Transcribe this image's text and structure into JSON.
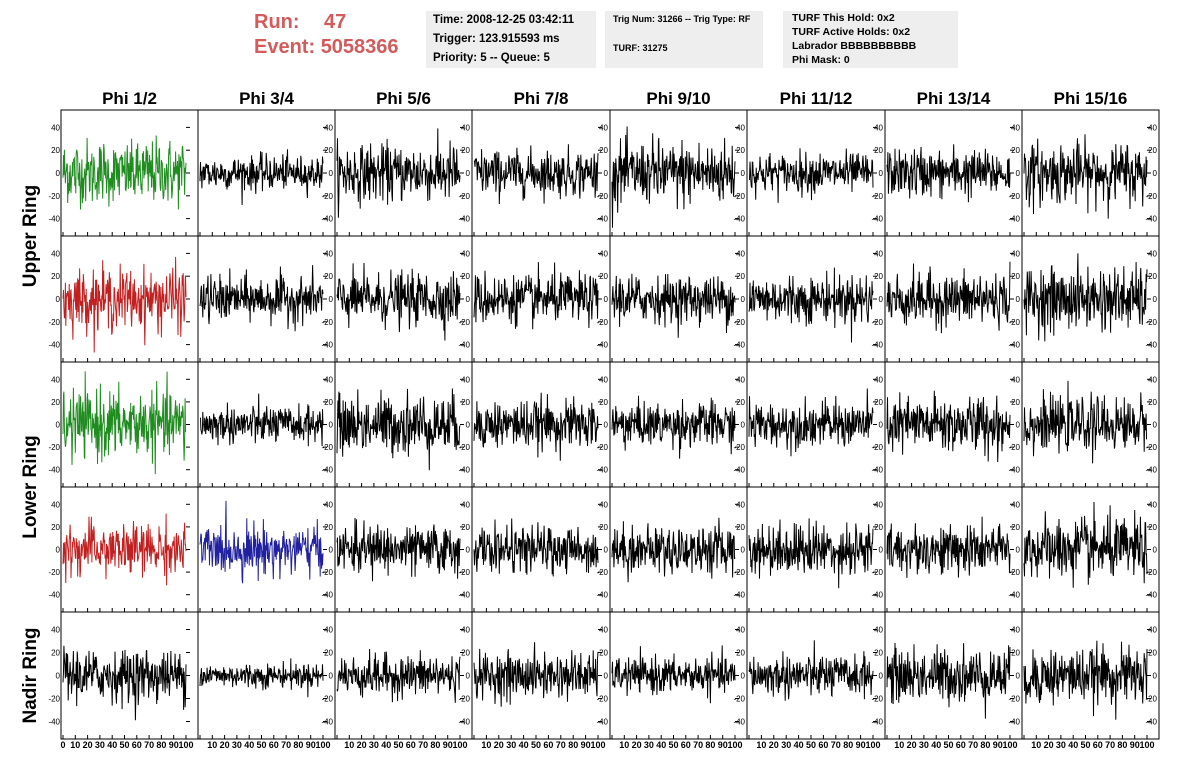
{
  "header": {
    "run_label": "Run:",
    "run_value": "47",
    "event_label": "Event:",
    "event_value": "5058366"
  },
  "info_box_1": {
    "time": "Time: 2008-12-25 03:42:11",
    "trigger": "Trigger: 123.915593 ms",
    "priority": "Priority: 5 -- Queue: 5"
  },
  "info_box_2": {
    "trig": "Trig Num: 31266 -- Trig Type: RF",
    "turf": "TURF: 31275"
  },
  "info_box_3": {
    "hold": "TURF This Hold: 0x2",
    "active": "TURF Active Holds: 0x2",
    "labrador": "Labrador BBBBBBBBBB",
    "mask": "Phi Mask: 0"
  },
  "colors": {
    "header_red": "#d35b5b",
    "trace_black": "#000000",
    "trace_green": "#1f8c1f",
    "trace_red": "#c22020",
    "trace_blue": "#2020a0",
    "info_box_bg": "#eeeeee"
  },
  "chart_data": {
    "type": "line",
    "columns": [
      "Phi 1/2",
      "Phi 3/4",
      "Phi 5/6",
      "Phi 7/8",
      "Phi 9/10",
      "Phi 11/12",
      "Phi 13/14",
      "Phi 15/16"
    ],
    "rows": [
      "Upper Ring",
      "Lower Ring",
      "Nadir Ring"
    ],
    "xlim": [
      0,
      100
    ],
    "ylim": [
      -50,
      50
    ],
    "ytick_labels": [
      "40",
      "20",
      "0",
      "-20",
      "-40"
    ],
    "xtick_labels": [
      "0",
      "10",
      "20",
      "30",
      "40",
      "50",
      "60",
      "70",
      "80",
      "90",
      "100"
    ],
    "panels": [
      {
        "row": 0,
        "col": 0,
        "color": "green",
        "amplitude": 18
      },
      {
        "row": 0,
        "col": 1,
        "color": "black",
        "amplitude": 10
      },
      {
        "row": 0,
        "col": 2,
        "color": "black",
        "amplitude": 16
      },
      {
        "row": 0,
        "col": 3,
        "color": "black",
        "amplitude": 13
      },
      {
        "row": 0,
        "col": 4,
        "color": "black",
        "amplitude": 18
      },
      {
        "row": 0,
        "col": 5,
        "color": "black",
        "amplitude": 11
      },
      {
        "row": 0,
        "col": 6,
        "color": "black",
        "amplitude": 14
      },
      {
        "row": 0,
        "col": 7,
        "color": "black",
        "amplitude": 17
      },
      {
        "row": 1,
        "col": 0,
        "color": "red",
        "amplitude": 17
      },
      {
        "row": 1,
        "col": 1,
        "color": "black",
        "amplitude": 13
      },
      {
        "row": 1,
        "col": 2,
        "color": "black",
        "amplitude": 15
      },
      {
        "row": 1,
        "col": 3,
        "color": "black",
        "amplitude": 14
      },
      {
        "row": 1,
        "col": 4,
        "color": "black",
        "amplitude": 14
      },
      {
        "row": 1,
        "col": 5,
        "color": "black",
        "amplitude": 14
      },
      {
        "row": 1,
        "col": 6,
        "color": "black",
        "amplitude": 15
      },
      {
        "row": 1,
        "col": 7,
        "color": "black",
        "amplitude": 18
      },
      {
        "row": 2,
        "col": 0,
        "color": "green",
        "amplitude": 19
      },
      {
        "row": 2,
        "col": 1,
        "color": "black",
        "amplitude": 11
      },
      {
        "row": 2,
        "col": 2,
        "color": "black",
        "amplitude": 17
      },
      {
        "row": 2,
        "col": 3,
        "color": "black",
        "amplitude": 14
      },
      {
        "row": 2,
        "col": 4,
        "color": "black",
        "amplitude": 13
      },
      {
        "row": 2,
        "col": 5,
        "color": "black",
        "amplitude": 13
      },
      {
        "row": 2,
        "col": 6,
        "color": "black",
        "amplitude": 16
      },
      {
        "row": 2,
        "col": 7,
        "color": "black",
        "amplitude": 15
      },
      {
        "row": 3,
        "col": 0,
        "color": "red",
        "amplitude": 15
      },
      {
        "row": 3,
        "col": 1,
        "color": "blue",
        "amplitude": 14
      },
      {
        "row": 3,
        "col": 2,
        "color": "black",
        "amplitude": 14
      },
      {
        "row": 3,
        "col": 3,
        "color": "black",
        "amplitude": 13
      },
      {
        "row": 3,
        "col": 4,
        "color": "black",
        "amplitude": 14
      },
      {
        "row": 3,
        "col": 5,
        "color": "black",
        "amplitude": 15
      },
      {
        "row": 3,
        "col": 6,
        "color": "black",
        "amplitude": 14
      },
      {
        "row": 3,
        "col": 7,
        "color": "black",
        "amplitude": 18
      },
      {
        "row": 4,
        "col": 0,
        "color": "black",
        "amplitude": 15
      },
      {
        "row": 4,
        "col": 1,
        "color": "black",
        "amplitude": 7
      },
      {
        "row": 4,
        "col": 2,
        "color": "black",
        "amplitude": 12
      },
      {
        "row": 4,
        "col": 3,
        "color": "black",
        "amplitude": 13
      },
      {
        "row": 4,
        "col": 4,
        "color": "black",
        "amplitude": 10
      },
      {
        "row": 4,
        "col": 5,
        "color": "black",
        "amplitude": 12
      },
      {
        "row": 4,
        "col": 6,
        "color": "black",
        "amplitude": 15
      },
      {
        "row": 4,
        "col": 7,
        "color": "black",
        "amplitude": 16
      }
    ]
  }
}
